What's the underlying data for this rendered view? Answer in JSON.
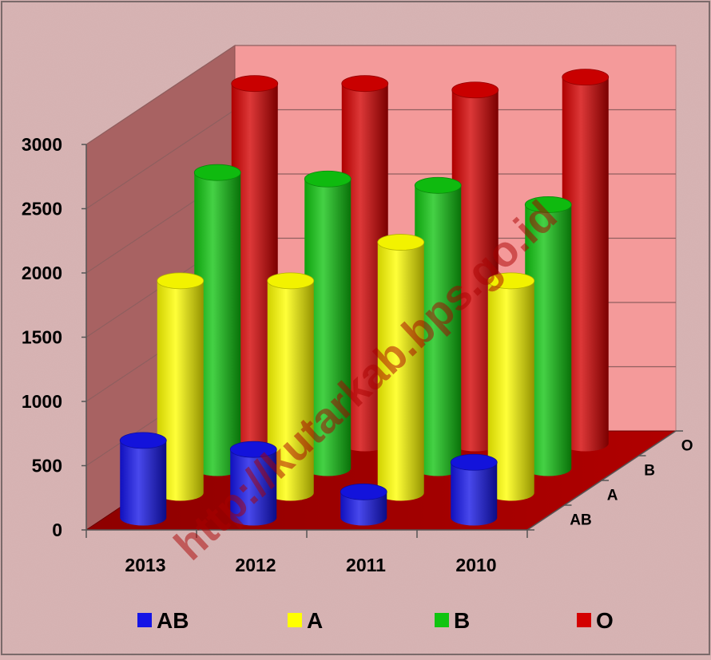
{
  "watermark": "http://kutarkab.bps.go.id",
  "chart_data": {
    "type": "bar",
    "categories": [
      "2013",
      "2012",
      "2011",
      "2010"
    ],
    "depth_categories": [
      "AB",
      "A",
      "B",
      "O"
    ],
    "series": [
      {
        "name": "AB",
        "color": "#1414e6",
        "values": [
          600,
          530,
          200,
          430
        ]
      },
      {
        "name": "A",
        "color": "#ffff00",
        "values": [
          1650,
          1650,
          1950,
          1650
        ]
      },
      {
        "name": "B",
        "color": "#10c410",
        "values": [
          2300,
          2250,
          2200,
          2050
        ]
      },
      {
        "name": "O",
        "color": "#d40000",
        "values": [
          2800,
          2800,
          2750,
          2850
        ]
      }
    ],
    "y_ticks": [
      "0",
      "500",
      "1000",
      "1500",
      "2000",
      "2500",
      "3000"
    ],
    "ylim": [
      0,
      3000
    ],
    "grid": true,
    "legend_position": "bottom",
    "title": "",
    "xlabel": "",
    "ylabel": ""
  }
}
